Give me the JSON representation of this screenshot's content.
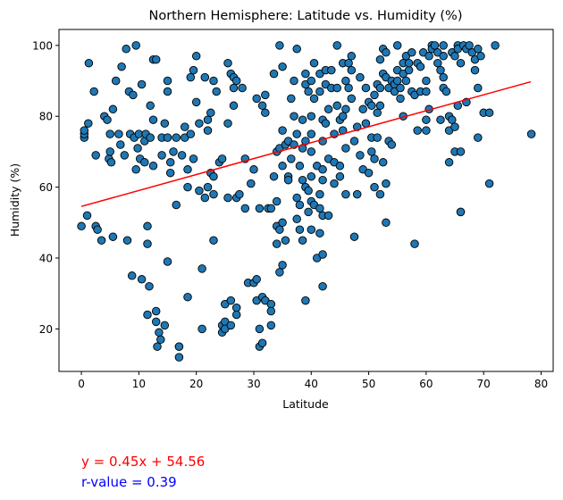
{
  "chart_data": {
    "type": "scatter",
    "title": "Northern Hemisphere: Latitude vs. Humidity (%)",
    "xlabel": "Latitude",
    "ylabel": "Humidity (%)",
    "xlim": [
      -3.9,
      82.1
    ],
    "ylim": [
      8,
      104.5
    ],
    "xticks": [
      0,
      10,
      20,
      30,
      40,
      50,
      60,
      70,
      80
    ],
    "yticks": [
      20,
      40,
      60,
      80,
      100
    ],
    "grid": false,
    "marker_color": "#1f77b4",
    "regression": {
      "slope": 0.45,
      "intercept": 54.56,
      "color": "#ff0000",
      "x_range": [
        0,
        78.2
      ],
      "equation_text": "y = 0.45x + 54.56",
      "r_text": "r-value = 0.39",
      "r_color": "#0000ff"
    },
    "points": [
      [
        0,
        49
      ],
      [
        0.5,
        74
      ],
      [
        0.5,
        75
      ],
      [
        0.5,
        76
      ],
      [
        1,
        52
      ],
      [
        1.2,
        78
      ],
      [
        1.3,
        95
      ],
      [
        2.2,
        87
      ],
      [
        2.5,
        69
      ],
      [
        2.5,
        49
      ],
      [
        2.8,
        48
      ],
      [
        3.5,
        45
      ],
      [
        4,
        80
      ],
      [
        4.5,
        79
      ],
      [
        4.8,
        68
      ],
      [
        5,
        75
      ],
      [
        5,
        70
      ],
      [
        5.2,
        67
      ],
      [
        5.5,
        82
      ],
      [
        5.5,
        46
      ],
      [
        6,
        90
      ],
      [
        6.5,
        75
      ],
      [
        6.8,
        72
      ],
      [
        7,
        94
      ],
      [
        7.5,
        69
      ],
      [
        7.8,
        99
      ],
      [
        8,
        45
      ],
      [
        8.3,
        87
      ],
      [
        8.5,
        75
      ],
      [
        8.8,
        35
      ],
      [
        9,
        86
      ],
      [
        9.2,
        74
      ],
      [
        9.5,
        100
      ],
      [
        9.5,
        65
      ],
      [
        9.8,
        71
      ],
      [
        10,
        75
      ],
      [
        10.2,
        68
      ],
      [
        10.5,
        89
      ],
      [
        10.5,
        34
      ],
      [
        11,
        73
      ],
      [
        11,
        67
      ],
      [
        11.2,
        75
      ],
      [
        11.5,
        49
      ],
      [
        11.5,
        44
      ],
      [
        11.5,
        24
      ],
      [
        11.8,
        32
      ],
      [
        12,
        83
      ],
      [
        12,
        74
      ],
      [
        12.5,
        79
      ],
      [
        12.5,
        96
      ],
      [
        12.5,
        66
      ],
      [
        13,
        96
      ],
      [
        13,
        25
      ],
      [
        13,
        22
      ],
      [
        13.2,
        15
      ],
      [
        13.5,
        19
      ],
      [
        13.8,
        17
      ],
      [
        14,
        74
      ],
      [
        14,
        69
      ],
      [
        14.5,
        78
      ],
      [
        14.5,
        21
      ],
      [
        15,
        90
      ],
      [
        15,
        87
      ],
      [
        15,
        74
      ],
      [
        15,
        39
      ],
      [
        15.5,
        64
      ],
      [
        15.5,
        67
      ],
      [
        16,
        70
      ],
      [
        16.5,
        55
      ],
      [
        16.5,
        74
      ],
      [
        17,
        15
      ],
      [
        17,
        12
      ],
      [
        17,
        15
      ],
      [
        17.5,
        69
      ],
      [
        18,
        77
      ],
      [
        18,
        74
      ],
      [
        18.5,
        29
      ],
      [
        18.5,
        60
      ],
      [
        18.5,
        65
      ],
      [
        19,
        91
      ],
      [
        19,
        75
      ],
      [
        19.5,
        93
      ],
      [
        19.5,
        68
      ],
      [
        20,
        97
      ],
      [
        20,
        84
      ],
      [
        20.5,
        59
      ],
      [
        20.5,
        78
      ],
      [
        21,
        37
      ],
      [
        21,
        20
      ],
      [
        21.5,
        91
      ],
      [
        21.5,
        57
      ],
      [
        22,
        60
      ],
      [
        22,
        76
      ],
      [
        22,
        79
      ],
      [
        22.5,
        64
      ],
      [
        22.5,
        81
      ],
      [
        23,
        90
      ],
      [
        23,
        58
      ],
      [
        23,
        63
      ],
      [
        23,
        45
      ],
      [
        23.5,
        87
      ],
      [
        24,
        67
      ],
      [
        24.5,
        68
      ],
      [
        24.5,
        19
      ],
      [
        24.5,
        21
      ],
      [
        25,
        27
      ],
      [
        25,
        22
      ],
      [
        25,
        20
      ],
      [
        25.5,
        95
      ],
      [
        25.5,
        57
      ],
      [
        25.5,
        78
      ],
      [
        26,
        92
      ],
      [
        26,
        28
      ],
      [
        26,
        21
      ],
      [
        26.5,
        88
      ],
      [
        26.5,
        91
      ],
      [
        26.5,
        83
      ],
      [
        27,
        90
      ],
      [
        27,
        57
      ],
      [
        27,
        26
      ],
      [
        27,
        24
      ],
      [
        27.5,
        58
      ],
      [
        28,
        88
      ],
      [
        28.5,
        54
      ],
      [
        28.5,
        68
      ],
      [
        29,
        33
      ],
      [
        29.5,
        61
      ],
      [
        30,
        65
      ],
      [
        30,
        33
      ],
      [
        30.5,
        85
      ],
      [
        30.5,
        28
      ],
      [
        30.5,
        34
      ],
      [
        31,
        15
      ],
      [
        31,
        20
      ],
      [
        31,
        54
      ],
      [
        31.5,
        83
      ],
      [
        31.5,
        16
      ],
      [
        31.5,
        29
      ],
      [
        32,
        81
      ],
      [
        32,
        86
      ],
      [
        32,
        28
      ],
      [
        32.5,
        54
      ],
      [
        33,
        54
      ],
      [
        33,
        27
      ],
      [
        33,
        21
      ],
      [
        33,
        25
      ],
      [
        33.5,
        92
      ],
      [
        33.5,
        63
      ],
      [
        34,
        70
      ],
      [
        34,
        56
      ],
      [
        34,
        49
      ],
      [
        34,
        44
      ],
      [
        34.5,
        100
      ],
      [
        34.5,
        71
      ],
      [
        34.5,
        48
      ],
      [
        34.5,
        36
      ],
      [
        35,
        94
      ],
      [
        35,
        76
      ],
      [
        35,
        66
      ],
      [
        35,
        50
      ],
      [
        35,
        38
      ],
      [
        35.5,
        72
      ],
      [
        35.5,
        45
      ],
      [
        36,
        73
      ],
      [
        36,
        63
      ],
      [
        36,
        62
      ],
      [
        36.5,
        85
      ],
      [
        36.5,
        68
      ],
      [
        37,
        90
      ],
      [
        37,
        80
      ],
      [
        37,
        72
      ],
      [
        37.5,
        99
      ],
      [
        37.5,
        75
      ],
      [
        37.5,
        57
      ],
      [
        37.5,
        51
      ],
      [
        38,
        66
      ],
      [
        38,
        55
      ],
      [
        38,
        48
      ],
      [
        38.5,
        79
      ],
      [
        38.5,
        71
      ],
      [
        38.5,
        62
      ],
      [
        38.5,
        45
      ],
      [
        39,
        92
      ],
      [
        39,
        89
      ],
      [
        39,
        73
      ],
      [
        39,
        60
      ],
      [
        39,
        28
      ],
      [
        39.5,
        87
      ],
      [
        39.5,
        59
      ],
      [
        39.5,
        53
      ],
      [
        40,
        90
      ],
      [
        40,
        80
      ],
      [
        40,
        75
      ],
      [
        40,
        70
      ],
      [
        40,
        63
      ],
      [
        40,
        56
      ],
      [
        40,
        48
      ],
      [
        40.5,
        95
      ],
      [
        40.5,
        85
      ],
      [
        40.5,
        55
      ],
      [
        41,
        66
      ],
      [
        41,
        40
      ],
      [
        41.5,
        92
      ],
      [
        41.5,
        87
      ],
      [
        41.5,
        58
      ],
      [
        41.5,
        54
      ],
      [
        41.5,
        47
      ],
      [
        42,
        79
      ],
      [
        42,
        73
      ],
      [
        42,
        65
      ],
      [
        42,
        62
      ],
      [
        42,
        52
      ],
      [
        42,
        41
      ],
      [
        42,
        32
      ],
      [
        42.5,
        93
      ],
      [
        42.5,
        89
      ],
      [
        42.5,
        78
      ],
      [
        43,
        82
      ],
      [
        43,
        68
      ],
      [
        43,
        52
      ],
      [
        43.5,
        93
      ],
      [
        43.5,
        88
      ],
      [
        44,
        75
      ],
      [
        44,
        67
      ],
      [
        44,
        61
      ],
      [
        44.5,
        100
      ],
      [
        44.5,
        88
      ],
      [
        44.5,
        83
      ],
      [
        45,
        66
      ],
      [
        45,
        79
      ],
      [
        45,
        63
      ],
      [
        45.5,
        95
      ],
      [
        45.5,
        80
      ],
      [
        45.5,
        76
      ],
      [
        46,
        90
      ],
      [
        46,
        82
      ],
      [
        46,
        71
      ],
      [
        46,
        58
      ],
      [
        46.5,
        88
      ],
      [
        46.5,
        95
      ],
      [
        47,
        97
      ],
      [
        47,
        93
      ],
      [
        47,
        85
      ],
      [
        47.5,
        73
      ],
      [
        47.5,
        46
      ],
      [
        48,
        77
      ],
      [
        48,
        58
      ],
      [
        48.5,
        91
      ],
      [
        48.5,
        69
      ],
      [
        49,
        82
      ],
      [
        49,
        65
      ],
      [
        49.5,
        88
      ],
      [
        49.5,
        78
      ],
      [
        50,
        64
      ],
      [
        50,
        84
      ],
      [
        50.5,
        83
      ],
      [
        50.5,
        74
      ],
      [
        50.5,
        70
      ],
      [
        51,
        86
      ],
      [
        51,
        68
      ],
      [
        51,
        60
      ],
      [
        51.5,
        89
      ],
      [
        51.5,
        81
      ],
      [
        51.5,
        74
      ],
      [
        52,
        96
      ],
      [
        52,
        88
      ],
      [
        52,
        83
      ],
      [
        52,
        58
      ],
      [
        52.5,
        99
      ],
      [
        52.5,
        92
      ],
      [
        52.5,
        67
      ],
      [
        53,
        98
      ],
      [
        53,
        91
      ],
      [
        53,
        61
      ],
      [
        53,
        50
      ],
      [
        53.5,
        88
      ],
      [
        53.5,
        73
      ],
      [
        54,
        72
      ],
      [
        54,
        90
      ],
      [
        54.5,
        89
      ],
      [
        54.5,
        87
      ],
      [
        55,
        100
      ],
      [
        55,
        90
      ],
      [
        55,
        93
      ],
      [
        55.5,
        88
      ],
      [
        55.5,
        85
      ],
      [
        56,
        95
      ],
      [
        56,
        92
      ],
      [
        56,
        80
      ],
      [
        56.5,
        97
      ],
      [
        56.5,
        90
      ],
      [
        57,
        93
      ],
      [
        57,
        95
      ],
      [
        57.5,
        87
      ],
      [
        57.5,
        98
      ],
      [
        58,
        86
      ],
      [
        58,
        44
      ],
      [
        58.5,
        95
      ],
      [
        58.5,
        76
      ],
      [
        59,
        94
      ],
      [
        59,
        87
      ],
      [
        59.5,
        98
      ],
      [
        60,
        90
      ],
      [
        60,
        87
      ],
      [
        60,
        76
      ],
      [
        60,
        79
      ],
      [
        60.5,
        97
      ],
      [
        60.5,
        82
      ],
      [
        61,
        100
      ],
      [
        61,
        99
      ],
      [
        61.5,
        100
      ],
      [
        62,
        98
      ],
      [
        62,
        95
      ],
      [
        62.5,
        79
      ],
      [
        62.5,
        93
      ],
      [
        63,
        91
      ],
      [
        63,
        88
      ],
      [
        63,
        97
      ],
      [
        63,
        100
      ],
      [
        63.5,
        87
      ],
      [
        64,
        80
      ],
      [
        64,
        76
      ],
      [
        64,
        67
      ],
      [
        64.5,
        98
      ],
      [
        64.5,
        79
      ],
      [
        65,
        97
      ],
      [
        65,
        77
      ],
      [
        65,
        70
      ],
      [
        65.5,
        100
      ],
      [
        65.5,
        99
      ],
      [
        65.5,
        83
      ],
      [
        66,
        95
      ],
      [
        66,
        70
      ],
      [
        66,
        53
      ],
      [
        66.5,
        100
      ],
      [
        66,
        53
      ],
      [
        67,
        99
      ],
      [
        67,
        84
      ],
      [
        67.5,
        100
      ],
      [
        68,
        98
      ],
      [
        68.5,
        96
      ],
      [
        68.5,
        93
      ],
      [
        69,
        99
      ],
      [
        69,
        88
      ],
      [
        69,
        74
      ],
      [
        69.5,
        97
      ],
      [
        70,
        81
      ],
      [
        71,
        81
      ],
      [
        71,
        61
      ],
      [
        72,
        100
      ],
      [
        78.3,
        75
      ]
    ]
  }
}
